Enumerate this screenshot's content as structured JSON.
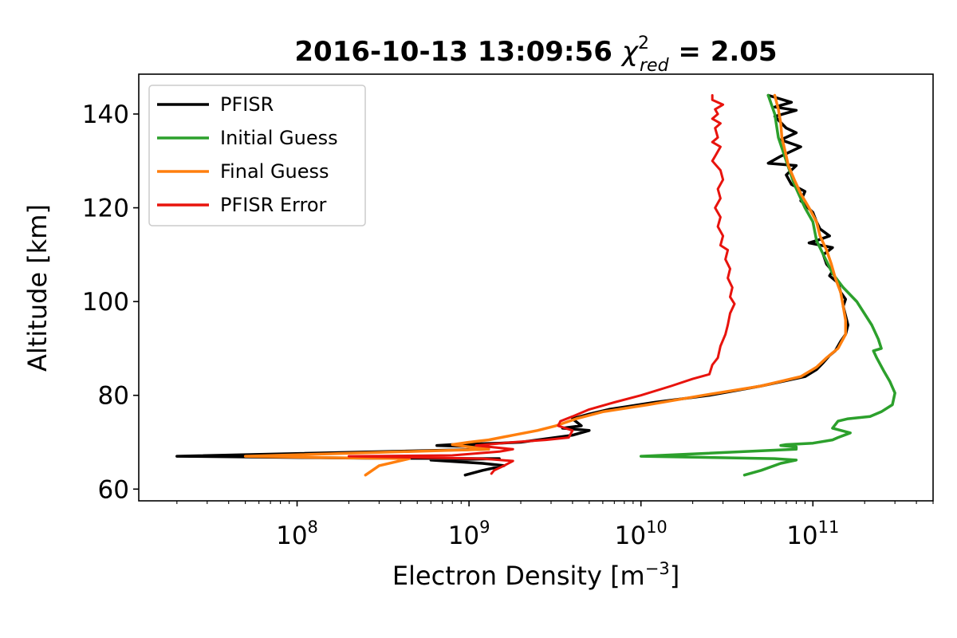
{
  "title": {
    "timestamp": "2016-10-13 13:09:56",
    "chi_symbol": "χ",
    "chi_sup": "2",
    "chi_sub": "red",
    "equals_value": " = 2.05"
  },
  "xlabel": {
    "text": "Electron Density [m",
    "sup": "−3",
    "close": "]"
  },
  "ylabel": "Altitude [km]",
  "chart_data": {
    "type": "line",
    "title": "2016-10-13 13:09:56 χ²_red = 2.05",
    "xlabel": "Electron Density [m^-3]",
    "ylabel": "Altitude [km]",
    "xscale": "log",
    "xlim": [
      12000000,
      500000000000
    ],
    "ylim": [
      57.5,
      148.5
    ],
    "x_major_ticks": [
      {
        "value": 100000000,
        "base": "10",
        "exp": "8"
      },
      {
        "value": 1000000000,
        "base": "10",
        "exp": "9"
      },
      {
        "value": 10000000000,
        "base": "10",
        "exp": "10"
      },
      {
        "value": 100000000000,
        "base": "10",
        "exp": "11"
      }
    ],
    "y_ticks": [
      60,
      80,
      100,
      120,
      140
    ],
    "legend_position": "upper-left",
    "series": [
      {
        "name": "PFISR",
        "color": "#000000",
        "width": 3.5,
        "points": [
          [
            55000000000.0,
            144
          ],
          [
            75000000000.0,
            142.5
          ],
          [
            60000000000.0,
            141.5
          ],
          [
            80000000000.0,
            140.8
          ],
          [
            60000000000.0,
            139.5
          ],
          [
            70000000000.0,
            137
          ],
          [
            80000000000.0,
            136
          ],
          [
            65000000000.0,
            134.5
          ],
          [
            85000000000.0,
            133
          ],
          [
            65000000000.0,
            131
          ],
          [
            55000000000.0,
            129.5
          ],
          [
            80000000000.0,
            129
          ],
          [
            70000000000.0,
            127
          ],
          [
            75000000000.0,
            125
          ],
          [
            90000000000.0,
            123.5
          ],
          [
            85000000000.0,
            121.5
          ],
          [
            100000000000.0,
            119
          ],
          [
            105000000000.0,
            117
          ],
          [
            110000000000.0,
            115.5
          ],
          [
            125000000000.0,
            114
          ],
          [
            105000000000.0,
            113
          ],
          [
            95000000000.0,
            112.5
          ],
          [
            130000000000.0,
            111.5
          ],
          [
            115000000000.0,
            110
          ],
          [
            120000000000.0,
            108
          ],
          [
            130000000000.0,
            106.5
          ],
          [
            125000000000.0,
            105.5
          ],
          [
            140000000000.0,
            104
          ],
          [
            145000000000.0,
            102
          ],
          [
            155000000000.0,
            100.5
          ],
          [
            150000000000.0,
            99
          ],
          [
            155000000000.0,
            97
          ],
          [
            160000000000.0,
            95
          ],
          [
            155000000000.0,
            93
          ],
          [
            145000000000.0,
            91.5
          ],
          [
            135000000000.0,
            89.5
          ],
          [
            125000000000.0,
            88.5
          ],
          [
            115000000000.0,
            87
          ],
          [
            105000000000.0,
            85.5
          ],
          [
            90000000000.0,
            84
          ],
          [
            50000000000.0,
            82
          ],
          [
            25000000000.0,
            80
          ],
          [
            12000000000.0,
            78.5
          ],
          [
            6500000000.0,
            77
          ],
          [
            5000000000.0,
            76
          ],
          [
            4000000000.0,
            75
          ],
          [
            4500000000.0,
            73.5
          ],
          [
            3500000000.0,
            73
          ],
          [
            5000000000.0,
            72.5
          ],
          [
            4000000000.0,
            71.5
          ],
          [
            2000000000.0,
            70
          ],
          [
            1500000000.0,
            69.8
          ],
          [
            800000000.0,
            69.5
          ],
          [
            650000000.0,
            69.3
          ],
          [
            1200000000.0,
            69
          ],
          [
            1300000000.0,
            68.5
          ],
          [
            20000000.0,
            67
          ],
          [
            250000000.0,
            66.6
          ],
          [
            1500000000.0,
            66.5
          ],
          [
            600000000.0,
            66.2
          ],
          [
            1200000000.0,
            65.5
          ],
          [
            1600000000.0,
            65
          ],
          [
            1200000000.0,
            64
          ],
          [
            950000000.0,
            63
          ]
        ]
      },
      {
        "name": "Initial Guess",
        "color": "#2ca02c",
        "width": 3.5,
        "points": [
          [
            55000000000.0,
            144
          ],
          [
            60000000000.0,
            140
          ],
          [
            63000000000.0,
            135
          ],
          [
            70000000000.0,
            130
          ],
          [
            78000000000.0,
            125
          ],
          [
            90000000000.0,
            120
          ],
          [
            100000000000.0,
            117
          ],
          [
            105000000000.0,
            113
          ],
          [
            115000000000.0,
            110
          ],
          [
            130000000000.0,
            106
          ],
          [
            150000000000.0,
            103
          ],
          [
            180000000000.0,
            100
          ],
          [
            220000000000.0,
            95
          ],
          [
            240000000000.0,
            92
          ],
          [
            250000000000.0,
            90
          ],
          [
            225000000000.0,
            89.5
          ],
          [
            235000000000.0,
            88
          ],
          [
            260000000000.0,
            85
          ],
          [
            280000000000.0,
            83
          ],
          [
            300000000000.0,
            80.5
          ],
          [
            290000000000.0,
            78
          ],
          [
            250000000000.0,
            76.5
          ],
          [
            215000000000.0,
            75.5
          ],
          [
            160000000000.0,
            75
          ],
          [
            140000000000.0,
            74.5
          ],
          [
            130000000000.0,
            73
          ],
          [
            165000000000.0,
            72
          ],
          [
            140000000000.0,
            71
          ],
          [
            130000000000.0,
            70.5
          ],
          [
            100000000000.0,
            69.8
          ],
          [
            70000000000.0,
            69.5
          ],
          [
            65000000000.0,
            69.3
          ],
          [
            80000000000.0,
            69
          ],
          [
            80000000000.0,
            68.5
          ],
          [
            10000000000.0,
            67
          ],
          [
            60000000000.0,
            66.5
          ],
          [
            80000000000.0,
            66.2
          ],
          [
            65000000000.0,
            65.5
          ],
          [
            50000000000.0,
            64
          ],
          [
            40000000000.0,
            63
          ]
        ]
      },
      {
        "name": "Final Guess",
        "color": "#ff7f0e",
        "width": 3.5,
        "points": [
          [
            60000000000.0,
            144
          ],
          [
            63000000000.0,
            141
          ],
          [
            65000000000.0,
            138
          ],
          [
            66000000000.0,
            135
          ],
          [
            69000000000.0,
            132
          ],
          [
            72000000000.0,
            129
          ],
          [
            78000000000.0,
            126
          ],
          [
            85000000000.0,
            123
          ],
          [
            95000000000.0,
            120
          ],
          [
            105000000000.0,
            117
          ],
          [
            110000000000.0,
            114
          ],
          [
            120000000000.0,
            111
          ],
          [
            128000000000.0,
            108
          ],
          [
            135000000000.0,
            105
          ],
          [
            145000000000.0,
            102
          ],
          [
            150000000000.0,
            99
          ],
          [
            155000000000.0,
            96
          ],
          [
            155000000000.0,
            93
          ],
          [
            140000000000.0,
            90
          ],
          [
            120000000000.0,
            88
          ],
          [
            105000000000.0,
            86
          ],
          [
            85000000000.0,
            84
          ],
          [
            50000000000.0,
            82
          ],
          [
            23000000000.0,
            80
          ],
          [
            11000000000.0,
            78
          ],
          [
            6000000000.0,
            76.5
          ],
          [
            4200000000.0,
            75
          ],
          [
            3200000000.0,
            73.5
          ],
          [
            2500000000.0,
            72.5
          ],
          [
            1800000000.0,
            71.5
          ],
          [
            1300000000.0,
            70.5
          ],
          [
            1000000000.0,
            70
          ],
          [
            800000000.0,
            69.5
          ],
          [
            1000000000.0,
            69
          ],
          [
            1300000000.0,
            68.5
          ],
          [
            50000000.0,
            67
          ],
          [
            150000000.0,
            66.7
          ],
          [
            450000000.0,
            66.5
          ],
          [
            300000000.0,
            65
          ],
          [
            250000000.0,
            63
          ]
        ]
      },
      {
        "name": "PFISR Error",
        "color": "#e8130d",
        "width": 3,
        "points": [
          [
            26000000000.0,
            144
          ],
          [
            26000000000.0,
            143
          ],
          [
            30000000000.0,
            142
          ],
          [
            27000000000.0,
            141
          ],
          [
            28000000000.0,
            140
          ],
          [
            26000000000.0,
            139
          ],
          [
            29000000000.0,
            138
          ],
          [
            27000000000.0,
            137
          ],
          [
            28000000000.0,
            135
          ],
          [
            26000000000.0,
            134
          ],
          [
            29000000000.0,
            133
          ],
          [
            27000000000.0,
            131
          ],
          [
            26000000000.0,
            130
          ],
          [
            29000000000.0,
            128
          ],
          [
            30000000000.0,
            126
          ],
          [
            28000000000.0,
            124
          ],
          [
            29000000000.0,
            122
          ],
          [
            27000000000.0,
            120
          ],
          [
            29000000000.0,
            118
          ],
          [
            28000000000.0,
            116
          ],
          [
            30000000000.0,
            114
          ],
          [
            29000000000.0,
            112
          ],
          [
            32000000000.0,
            111
          ],
          [
            31000000000.0,
            109
          ],
          [
            33000000000.0,
            107
          ],
          [
            32000000000.0,
            105
          ],
          [
            34000000000.0,
            103
          ],
          [
            33000000000.0,
            101
          ],
          [
            35000000000.0,
            99.5
          ],
          [
            33000000000.0,
            97.5
          ],
          [
            32000000000.0,
            95
          ],
          [
            31000000000.0,
            93
          ],
          [
            29000000000.0,
            90.5
          ],
          [
            28000000000.0,
            88
          ],
          [
            26000000000.0,
            86.5
          ],
          [
            25000000000.0,
            84.5
          ],
          [
            20000000000.0,
            83.5
          ],
          [
            15000000000.0,
            82
          ],
          [
            10000000000.0,
            80
          ],
          [
            7000000000.0,
            78.5
          ],
          [
            5000000000.0,
            77
          ],
          [
            4000000000.0,
            75.5
          ],
          [
            3400000000.0,
            74.5
          ],
          [
            3300000000.0,
            73.5
          ],
          [
            4000000000.0,
            72.5
          ],
          [
            3800000000.0,
            71
          ],
          [
            2800000000.0,
            70.5
          ],
          [
            1800000000.0,
            70
          ],
          [
            1100000000.0,
            69.3
          ],
          [
            1800000000.0,
            68.5
          ],
          [
            1500000000.0,
            68
          ],
          [
            800000000.0,
            67.2
          ],
          [
            200000000.0,
            67
          ],
          [
            1200000000.0,
            66.5
          ],
          [
            1800000000.0,
            66
          ],
          [
            1600000000.0,
            65
          ],
          [
            1400000000.0,
            64
          ],
          [
            1350000000.0,
            63.3
          ]
        ]
      }
    ]
  }
}
